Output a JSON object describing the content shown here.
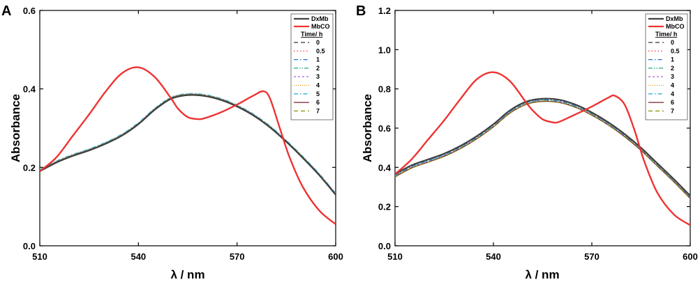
{
  "chart_data": [
    {
      "type": "line",
      "panel": "A",
      "xlabel": "λ / nm",
      "ylabel": "Absorbance",
      "xlim": [
        510,
        600
      ],
      "ylim": [
        0.0,
        0.6
      ],
      "xticks": [
        "510",
        "540",
        "570",
        "600"
      ],
      "yticks": [
        "0.0",
        "0.2",
        "0.4",
        "0.6"
      ],
      "xtick_values": [
        510,
        540,
        570,
        600
      ],
      "ytick_values": [
        0.0,
        0.2,
        0.4,
        0.6
      ],
      "legend_title": "Time/ h",
      "legend_position": "top-right",
      "series": [
        {
          "name": "DxMb",
          "color": "#404040",
          "style": "solid",
          "width": 2.2,
          "x": [
            510,
            515,
            520,
            525,
            530,
            535,
            540,
            545,
            550,
            555,
            560,
            565,
            570,
            575,
            580,
            585,
            590,
            595,
            600
          ],
          "y": [
            0.19,
            0.212,
            0.229,
            0.243,
            0.26,
            0.281,
            0.31,
            0.347,
            0.375,
            0.384,
            0.382,
            0.372,
            0.355,
            0.332,
            0.302,
            0.265,
            0.224,
            0.18,
            0.13
          ]
        },
        {
          "name": "MbCO",
          "color": "#ee3333",
          "style": "solid",
          "width": 2.4,
          "x": [
            510,
            515,
            520,
            525,
            530,
            535,
            540,
            545,
            550,
            552,
            555,
            558,
            560,
            565,
            570,
            575,
            578,
            580,
            583,
            586,
            590,
            595,
            600
          ],
          "y": [
            0.19,
            0.225,
            0.28,
            0.335,
            0.393,
            0.44,
            0.455,
            0.43,
            0.375,
            0.35,
            0.328,
            0.323,
            0.325,
            0.34,
            0.36,
            0.383,
            0.394,
            0.376,
            0.3,
            0.225,
            0.15,
            0.09,
            0.055
          ]
        },
        {
          "name": "0",
          "color": "#333333",
          "style": "dash",
          "width": 1.2,
          "dy": 0.0
        },
        {
          "name": "0.5",
          "color": "#ff4444",
          "style": "dot",
          "width": 1.2,
          "dy": 0.001
        },
        {
          "name": "1",
          "color": "#1f6fd0",
          "style": "dashdot",
          "width": 1.2,
          "dy": 0.002
        },
        {
          "name": "2",
          "color": "#1aaa8a",
          "style": "dashdotdot",
          "width": 1.2,
          "dy": 0.0025
        },
        {
          "name": "3",
          "color": "#b56fe0",
          "style": "shortdash",
          "width": 1.2,
          "dy": 0.003
        },
        {
          "name": "4",
          "color": "#e08a00",
          "style": "shortdot",
          "width": 1.2,
          "dy": 0.002
        },
        {
          "name": "5",
          "color": "#2fb0e0",
          "style": "dashdot",
          "width": 1.2,
          "dy": 0.004
        },
        {
          "name": "6",
          "color": "#7a1f2b",
          "style": "solid",
          "width": 1.2,
          "dy": 0.001
        },
        {
          "name": "7",
          "color": "#8a8a00",
          "style": "dash",
          "width": 1.2,
          "dy": 0.002
        }
      ]
    },
    {
      "type": "line",
      "panel": "B",
      "xlabel": "λ / nm",
      "ylabel": "Absorbance",
      "xlim": [
        510,
        600
      ],
      "ylim": [
        0.0,
        1.2
      ],
      "xticks": [
        "510",
        "540",
        "570",
        "600"
      ],
      "yticks": [
        "0.0",
        "0.2",
        "0.4",
        "0.6",
        "0.8",
        "1.0",
        "1.2"
      ],
      "xtick_values": [
        510,
        540,
        570,
        600
      ],
      "ytick_values": [
        0.0,
        0.2,
        0.4,
        0.6,
        0.8,
        1.0,
        1.2
      ],
      "legend_title": "Time/ h",
      "legend_position": "top-right",
      "series": [
        {
          "name": "DxMb",
          "color": "#404040",
          "style": "solid",
          "width": 2.2,
          "x": [
            510,
            515,
            520,
            525,
            530,
            535,
            540,
            545,
            550,
            555,
            560,
            565,
            570,
            575,
            580,
            585,
            590,
            595,
            600
          ],
          "y": [
            0.365,
            0.41,
            0.44,
            0.47,
            0.51,
            0.56,
            0.62,
            0.69,
            0.735,
            0.75,
            0.745,
            0.72,
            0.68,
            0.63,
            0.57,
            0.5,
            0.42,
            0.34,
            0.255
          ]
        },
        {
          "name": "MbCO",
          "color": "#ee3333",
          "style": "solid",
          "width": 2.4,
          "x": [
            510,
            515,
            520,
            525,
            530,
            535,
            540,
            545,
            550,
            552,
            555,
            558,
            560,
            565,
            570,
            575,
            577,
            580,
            583,
            586,
            590,
            595,
            600
          ],
          "y": [
            0.365,
            0.44,
            0.54,
            0.64,
            0.75,
            0.85,
            0.885,
            0.84,
            0.73,
            0.69,
            0.645,
            0.63,
            0.632,
            0.67,
            0.71,
            0.755,
            0.765,
            0.72,
            0.59,
            0.43,
            0.27,
            0.16,
            0.105
          ]
        },
        {
          "name": "0",
          "color": "#333333",
          "style": "dash",
          "width": 1.2,
          "dy": 0.0
        },
        {
          "name": "0.5",
          "color": "#ff4444",
          "style": "dot",
          "width": 1.2,
          "dy": -0.004
        },
        {
          "name": "1",
          "color": "#1f6fd0",
          "style": "dashdot",
          "width": 1.2,
          "dy": -0.006
        },
        {
          "name": "2",
          "color": "#1aaa8a",
          "style": "dashdotdot",
          "width": 1.2,
          "dy": -0.008
        },
        {
          "name": "3",
          "color": "#b56fe0",
          "style": "shortdash",
          "width": 1.2,
          "dy": -0.01
        },
        {
          "name": "4",
          "color": "#e08a00",
          "style": "shortdot",
          "width": 1.2,
          "dy": -0.012
        },
        {
          "name": "4",
          "color": "#2fb0e0",
          "style": "dashdot",
          "width": 1.2,
          "dy": -0.013
        },
        {
          "name": "6",
          "color": "#7a1f2b",
          "style": "solid",
          "width": 1.2,
          "dy": -0.014
        },
        {
          "name": "7",
          "color": "#8a8a00",
          "style": "dash",
          "width": 1.2,
          "dy": -0.015
        }
      ]
    }
  ]
}
